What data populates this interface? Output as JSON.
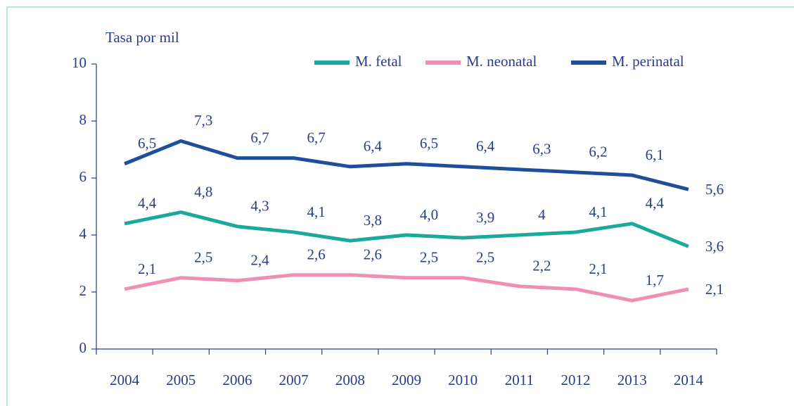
{
  "chart_data": {
    "type": "line",
    "y_label": "Tasa por mil",
    "categories": [
      "2004",
      "2005",
      "2006",
      "2007",
      "2008",
      "2009",
      "2010",
      "2011",
      "2012",
      "2013",
      "2014"
    ],
    "ylim": [
      0,
      10
    ],
    "yticks": [
      0,
      2,
      4,
      6,
      8,
      10
    ],
    "legend": "top-right",
    "series": [
      {
        "name": "M. fetal",
        "color": "#1aa99c",
        "values": [
          4.4,
          4.8,
          4.3,
          4.1,
          3.8,
          4.0,
          3.9,
          4,
          4.1,
          4.4,
          3.6
        ],
        "value_labels": [
          "4,4",
          "4,8",
          "4,3",
          "4,1",
          "3,8",
          "4,0",
          "3,9",
          "4",
          "4,1",
          "4,4",
          "3,6"
        ]
      },
      {
        "name": "M. neonatal",
        "color": "#f08fb5",
        "values": [
          2.1,
          2.5,
          2.4,
          2.6,
          2.6,
          2.5,
          2.5,
          2.2,
          2.1,
          1.7,
          2.1
        ],
        "value_labels": [
          "2,1",
          "2,5",
          "2,4",
          "2,6",
          "2,6",
          "2,5",
          "2,5",
          "2,2",
          "2,1",
          "1,7",
          "2,1"
        ]
      },
      {
        "name": "M. perinatal",
        "color": "#1f4e9a",
        "values": [
          6.5,
          7.3,
          6.7,
          6.7,
          6.4,
          6.5,
          6.4,
          6.3,
          6.2,
          6.1,
          5.6
        ],
        "value_labels": [
          "6,5",
          "7,3",
          "6,7",
          "6,7",
          "6,4",
          "6,5",
          "6,4",
          "6,3",
          "6,2",
          "6,1",
          "5,6"
        ]
      }
    ]
  }
}
